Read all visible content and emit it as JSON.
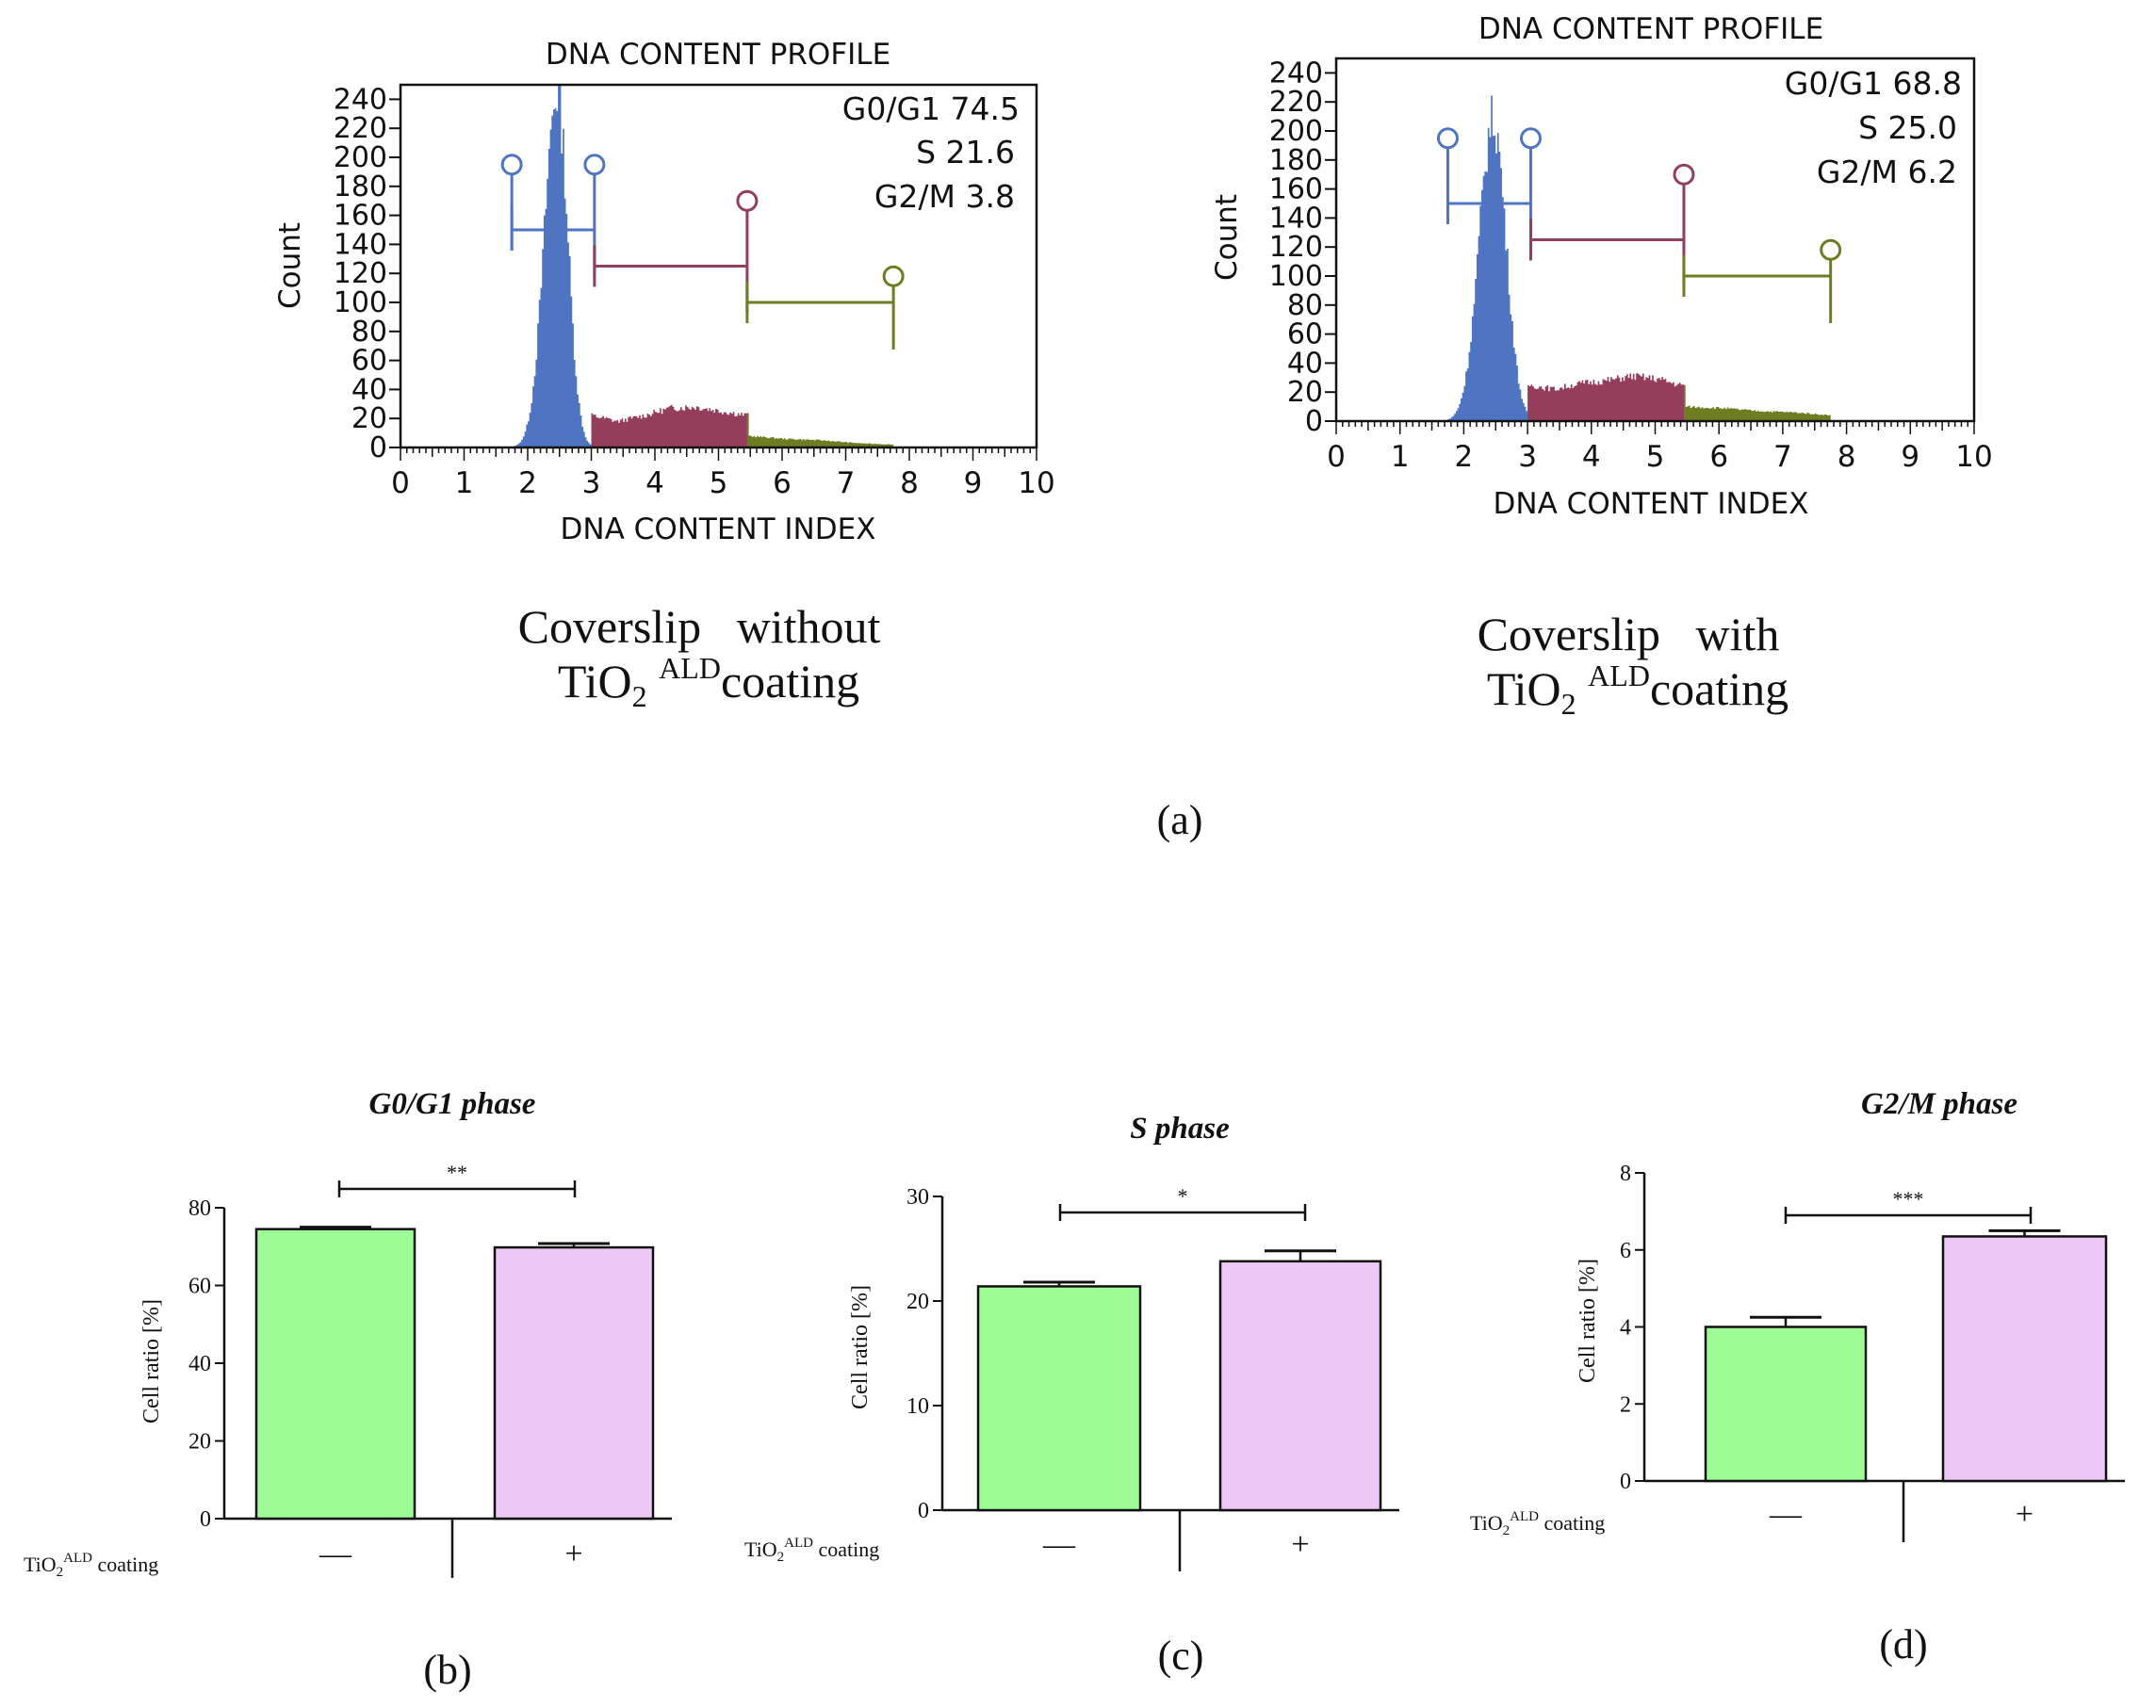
{
  "colors": {
    "g1": "#4f75c2",
    "s": "#943e5b",
    "g2": "#6f7d22",
    "bar_minus": "#9dfc95",
    "bar_plus": "#edc8f7",
    "axis": "#111111"
  },
  "figure_labels": {
    "a": "(a)",
    "b": "(b)",
    "c": "(c)",
    "d": "(d)"
  },
  "chart_data": [
    {
      "type": "area",
      "id": "hist_left",
      "title": "DNA CONTENT PROFILE",
      "xlabel": "DNA CONTENT INDEX",
      "ylabel": "Count",
      "xlim": [
        0,
        10
      ],
      "ylim": [
        0,
        250
      ],
      "x_ticks": [
        "0",
        "1",
        "2",
        "3",
        "4",
        "5",
        "6",
        "7",
        "8",
        "9",
        "10"
      ],
      "y_ticks": [
        "0",
        "20",
        "40",
        "60",
        "80",
        "100",
        "120",
        "140",
        "160",
        "180",
        "200",
        "220",
        "240"
      ],
      "stats": [
        "G0/G1 74.5",
        "S 21.6",
        "G2/M 3.8"
      ],
      "markers": [
        {
          "phase": "G0/G1",
          "x_start": 1.75,
          "x_end": 3.05,
          "y_line": 150,
          "y_marker": 195
        },
        {
          "phase": "S",
          "x_start": 3.05,
          "x_end": 5.45,
          "y_line": 125,
          "y_marker": 170
        },
        {
          "phase": "G2/M",
          "x_start": 5.45,
          "x_end": 7.75,
          "y_line": 100,
          "y_marker": 118
        }
      ],
      "histogram": {
        "g1_peak_x": 2.45,
        "g1_peak_count": 245,
        "g1_sigma_left": 0.2,
        "g1_sigma_right": 0.17,
        "s_range": [
          3.0,
          5.45
        ],
        "s_counts": [
          22,
          18,
          22,
          27,
          28,
          25,
          22
        ],
        "g2_range": [
          5.45,
          7.75
        ],
        "g2_counts": [
          8,
          6,
          5,
          3,
          2
        ]
      },
      "caption_line1": "Coverslip   without",
      "caption_line2_main": "TiO",
      "caption_sub": "2",
      "caption_sup": "ALD",
      "caption_line2_end": "coating"
    },
    {
      "type": "area",
      "id": "hist_right",
      "title": "DNA CONTENT PROFILE",
      "xlabel": "DNA CONTENT INDEX",
      "ylabel": "Count",
      "xlim": [
        0,
        10
      ],
      "ylim": [
        0,
        250
      ],
      "x_ticks": [
        "0",
        "1",
        "2",
        "3",
        "4",
        "5",
        "6",
        "7",
        "8",
        "9",
        "10"
      ],
      "y_ticks": [
        "0",
        "20",
        "40",
        "60",
        "80",
        "100",
        "120",
        "140",
        "160",
        "180",
        "200",
        "220",
        "240"
      ],
      "stats": [
        "G0/G1 68.8",
        "S 25.0",
        "G2/M 6.2"
      ],
      "markers": [
        {
          "phase": "G0/G1",
          "x_start": 1.75,
          "x_end": 3.05,
          "y_line": 150,
          "y_marker": 195
        },
        {
          "phase": "S",
          "x_start": 3.05,
          "x_end": 5.45,
          "y_line": 125,
          "y_marker": 170
        },
        {
          "phase": "G2/M",
          "x_start": 5.45,
          "x_end": 7.75,
          "y_line": 100,
          "y_marker": 118
        }
      ],
      "histogram": {
        "g1_peak_x": 2.45,
        "g1_peak_count": 208,
        "g1_sigma_left": 0.22,
        "g1_sigma_right": 0.2,
        "s_range": [
          3.0,
          5.45
        ],
        "s_counts": [
          25,
          22,
          26,
          28,
          31,
          29,
          24
        ],
        "g2_range": [
          5.45,
          7.75
        ],
        "g2_counts": [
          10,
          9,
          7,
          6,
          4
        ]
      },
      "caption_line1": "Coverslip   with",
      "caption_line2_main": "TiO",
      "caption_sub": "2",
      "caption_sup": "ALD",
      "caption_line2_end": "coating"
    },
    {
      "type": "bar",
      "id": "bar_g0g1",
      "title": "G0/G1 phase",
      "ylabel": "Cell ratio [%]",
      "ylim": [
        0,
        80
      ],
      "y_ticks": [
        "0",
        "20",
        "40",
        "60",
        "80"
      ],
      "categories": [
        "—",
        "+"
      ],
      "values": [
        74.5,
        69.8
      ],
      "errors": [
        0.5,
        1.0
      ],
      "significance": "**",
      "group_label_main": "TiO",
      "group_label_sub": "2",
      "group_label_sup": "ALD",
      "group_label_end": " coating"
    },
    {
      "type": "bar",
      "id": "bar_s",
      "title": "S phase",
      "ylabel": "Cell ratio [%]",
      "ylim": [
        0,
        30
      ],
      "y_ticks": [
        "0",
        "10",
        "20",
        "30"
      ],
      "categories": [
        "—",
        "+"
      ],
      "values": [
        21.4,
        23.8
      ],
      "errors": [
        0.4,
        1.0
      ],
      "significance": "*",
      "group_label_main": "TiO",
      "group_label_sub": "2",
      "group_label_sup": "ALD",
      "group_label_end": " coating"
    },
    {
      "type": "bar",
      "id": "bar_g2m",
      "title": "G2/M phase",
      "ylabel": "Cell ratio [%]",
      "ylim": [
        0,
        8
      ],
      "y_ticks": [
        "0",
        "2",
        "4",
        "6",
        "8"
      ],
      "categories": [
        "—",
        "+"
      ],
      "values": [
        4.0,
        6.35
      ],
      "errors": [
        0.25,
        0.15
      ],
      "significance": "***",
      "group_label_main": "TiO",
      "group_label_sub": "2",
      "group_label_sup": "ALD",
      "group_label_end": " coating"
    }
  ]
}
